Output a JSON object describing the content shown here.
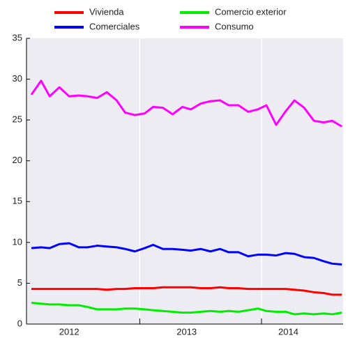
{
  "chart_data": {
    "type": "line",
    "x": [
      2012.11,
      2012.19,
      2012.26,
      2012.34,
      2012.42,
      2012.5,
      2012.57,
      2012.65,
      2012.73,
      2012.81,
      2012.88,
      2012.96,
      2013.04,
      2013.11,
      2013.19,
      2013.27,
      2013.35,
      2013.42,
      2013.5,
      2013.58,
      2013.66,
      2013.73,
      2013.81,
      2013.89,
      2013.97,
      2014.04,
      2014.12,
      2014.2,
      2014.27,
      2014.35,
      2014.43,
      2014.51,
      2014.58,
      2014.66
    ],
    "series": [
      {
        "name": "Vivienda",
        "color": "#ff0000",
        "values": [
          4.3,
          4.3,
          4.3,
          4.3,
          4.3,
          4.3,
          4.3,
          4.3,
          4.2,
          4.3,
          4.3,
          4.4,
          4.4,
          4.4,
          4.5,
          4.5,
          4.5,
          4.5,
          4.4,
          4.4,
          4.5,
          4.4,
          4.4,
          4.3,
          4.3,
          4.3,
          4.3,
          4.3,
          4.2,
          4.1,
          3.9,
          3.8,
          3.6,
          3.6
        ]
      },
      {
        "name": "Comerciales",
        "color": "#0000ff",
        "values": [
          9.3,
          9.4,
          9.3,
          9.8,
          9.9,
          9.4,
          9.4,
          9.6,
          9.5,
          9.4,
          9.2,
          8.9,
          9.3,
          9.7,
          9.2,
          9.2,
          9.1,
          9.0,
          9.2,
          8.9,
          9.2,
          8.8,
          8.8,
          8.3,
          8.5,
          8.5,
          8.4,
          8.7,
          8.6,
          8.2,
          8.1,
          7.7,
          7.4,
          7.3
        ]
      },
      {
        "name": "Comercio exterior",
        "color": "#00ee00",
        "values": [
          2.6,
          2.5,
          2.4,
          2.4,
          2.3,
          2.3,
          2.1,
          1.8,
          1.8,
          1.8,
          1.9,
          1.9,
          1.8,
          1.7,
          1.6,
          1.5,
          1.4,
          1.4,
          1.5,
          1.6,
          1.5,
          1.6,
          1.5,
          1.7,
          1.9,
          1.6,
          1.5,
          1.5,
          1.2,
          1.3,
          1.2,
          1.3,
          1.2,
          1.4
        ]
      },
      {
        "name": "Consumo",
        "color": "#ff00ff",
        "values": [
          28.1,
          29.8,
          27.9,
          29.0,
          27.9,
          28.0,
          27.9,
          27.7,
          28.4,
          27.4,
          25.9,
          25.6,
          25.8,
          26.6,
          26.5,
          25.7,
          26.6,
          26.3,
          27.0,
          27.3,
          27.4,
          26.8,
          26.8,
          26.0,
          26.3,
          26.8,
          24.4,
          26.1,
          27.4,
          26.5,
          24.9,
          24.7,
          24.9,
          24.2
        ]
      }
    ],
    "xlim": [
      2012.07,
      2014.67
    ],
    "xticks": [
      2013,
      2014
    ],
    "year_labels": [
      "2012",
      "2013",
      "2014"
    ],
    "ylim": [
      0,
      35
    ],
    "yticks": [
      0,
      5,
      10,
      15,
      20,
      25,
      30,
      35
    ]
  }
}
